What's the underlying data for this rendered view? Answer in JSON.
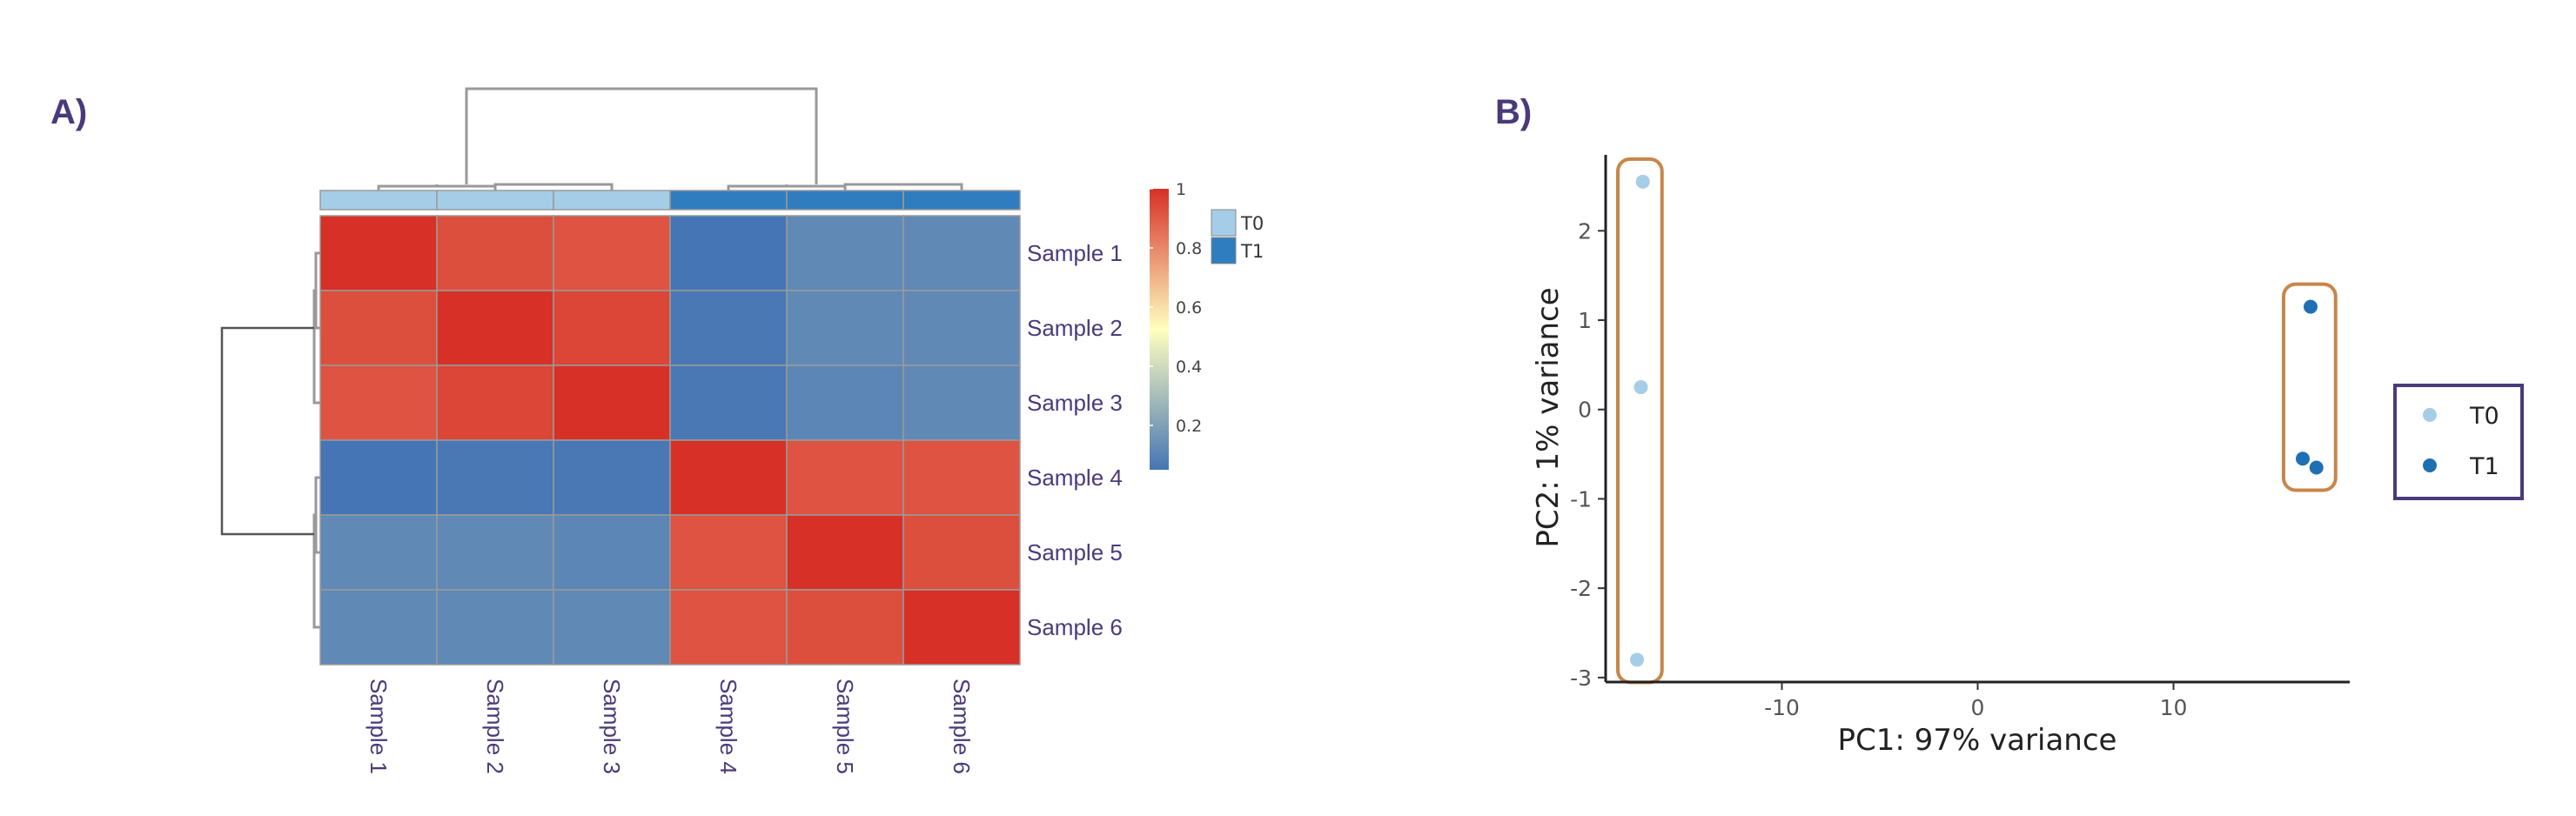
{
  "panels": {
    "a_label": "A)",
    "b_label": "B)"
  },
  "chart_data": [
    {
      "type": "heatmap",
      "panel": "A)",
      "rows": [
        "Sample 1",
        "Sample 2",
        "Sample 3",
        "Sample 4",
        "Sample 5",
        "Sample 6"
      ],
      "columns": [
        "Sample 1",
        "Sample 2",
        "Sample 3",
        "Sample 4",
        "Sample 5",
        "Sample 6"
      ],
      "values": [
        [
          1.0,
          0.93,
          0.92,
          0.05,
          0.12,
          0.12
        ],
        [
          0.93,
          1.0,
          0.95,
          0.06,
          0.12,
          0.12
        ],
        [
          0.92,
          0.95,
          1.0,
          0.06,
          0.11,
          0.12
        ],
        [
          0.05,
          0.06,
          0.06,
          1.0,
          0.92,
          0.92
        ],
        [
          0.12,
          0.12,
          0.11,
          0.92,
          1.0,
          0.93
        ],
        [
          0.12,
          0.12,
          0.12,
          0.92,
          0.93,
          1.0
        ]
      ],
      "column_groups": [
        "T0",
        "T0",
        "T0",
        "T1",
        "T1",
        "T1"
      ],
      "colorbar": {
        "ticks": [
          "1",
          "0.8",
          "0.6",
          "0.4",
          "0.2"
        ],
        "tick_values": [
          1.0,
          0.8,
          0.6,
          0.4,
          0.2
        ],
        "range": [
          0.05,
          1.0
        ],
        "colors": {
          "high": "#d73027",
          "mid": "#ffffbf",
          "low": "#4575b4"
        }
      },
      "group_legend": [
        {
          "label": "T0",
          "color": "#a6cde8"
        },
        {
          "label": "T1",
          "color": "#2f7dbe"
        }
      ],
      "dendrograms": {
        "rows": true,
        "columns": true
      }
    },
    {
      "type": "scatter",
      "panel": "B)",
      "xlabel": "PC1: 97% variance",
      "ylabel": "PC2: 1% variance",
      "xticks": [
        -10,
        0,
        10
      ],
      "yticks": [
        -3,
        -2,
        -1,
        0,
        1,
        2
      ],
      "xlim": [
        -19,
        19
      ],
      "ylim": [
        -3.05,
        2.85
      ],
      "series": [
        {
          "name": "T0",
          "color": "#a6cde8",
          "points": [
            {
              "x": -17.1,
              "y": 2.55
            },
            {
              "x": -17.2,
              "y": 0.25
            },
            {
              "x": -17.4,
              "y": -2.8
            }
          ]
        },
        {
          "name": "T1",
          "color": "#1f6fb4",
          "points": [
            {
              "x": 17.0,
              "y": 1.15
            },
            {
              "x": 16.6,
              "y": -0.55
            },
            {
              "x": 17.3,
              "y": -0.65
            }
          ]
        }
      ],
      "legend": "right",
      "grid": false,
      "group_boxes": true
    }
  ]
}
